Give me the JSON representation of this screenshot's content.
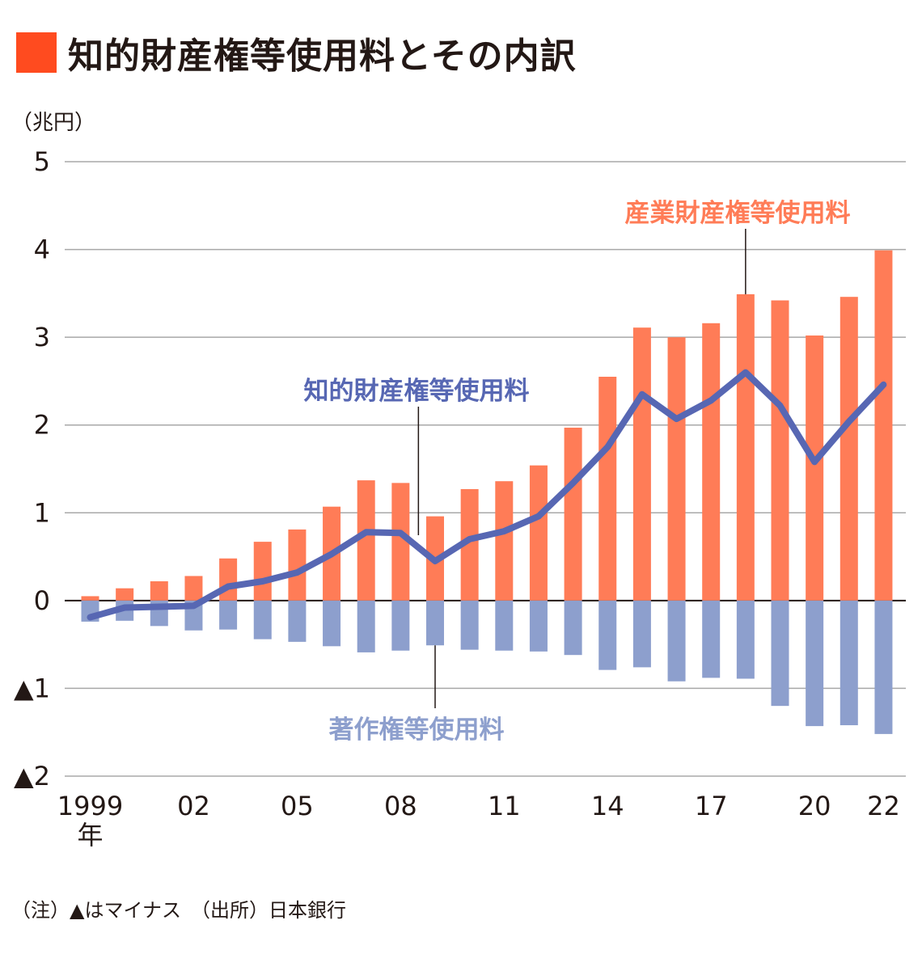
{
  "title": "知的財産権等使用料とその内訳",
  "unit_label": "（兆円）",
  "note": "（注）▲はマイナス　（出所）日本銀行",
  "colors": {
    "accent": "#ff4b1f",
    "industrial": "#ff7c57",
    "copyright": "#8d9fcd",
    "total": "#5767b3",
    "grid": "#a8a8a8"
  },
  "chart_data": {
    "type": "bar",
    "title": "知的財産権等使用料とその内訳",
    "ylabel": "（兆円）",
    "ylim": [
      -2,
      5
    ],
    "grid": true,
    "x": [
      1999,
      2000,
      2001,
      2002,
      2003,
      2004,
      2005,
      2006,
      2007,
      2008,
      2009,
      2010,
      2011,
      2012,
      2013,
      2014,
      2015,
      2016,
      2017,
      2018,
      2019,
      2020,
      2021,
      2022
    ],
    "x_tick_labels": [
      {
        "year": 1999,
        "label": "1999",
        "sub": "年"
      },
      {
        "year": 2002,
        "label": "02"
      },
      {
        "year": 2005,
        "label": "05"
      },
      {
        "year": 2008,
        "label": "08"
      },
      {
        "year": 2011,
        "label": "11"
      },
      {
        "year": 2014,
        "label": "14"
      },
      {
        "year": 2017,
        "label": "17"
      },
      {
        "year": 2020,
        "label": "20"
      },
      {
        "year": 2022,
        "label": "22"
      }
    ],
    "y_ticks": [
      {
        "value": 5,
        "label": "5"
      },
      {
        "value": 4,
        "label": "4"
      },
      {
        "value": 3,
        "label": "3"
      },
      {
        "value": 2,
        "label": "2"
      },
      {
        "value": 1,
        "label": "1"
      },
      {
        "value": 0,
        "label": "0"
      },
      {
        "value": -1,
        "label": "▲1"
      },
      {
        "value": -2,
        "label": "▲2"
      }
    ],
    "series": [
      {
        "name": "産業財産権等使用料",
        "type": "bar",
        "values": [
          0.05,
          0.14,
          0.22,
          0.28,
          0.48,
          0.67,
          0.81,
          1.07,
          1.37,
          1.34,
          0.96,
          1.27,
          1.36,
          1.54,
          1.97,
          2.55,
          3.11,
          3.0,
          3.16,
          3.49,
          3.42,
          3.02,
          3.46,
          3.99
        ]
      },
      {
        "name": "著作権等使用料",
        "type": "bar",
        "values": [
          -0.24,
          -0.23,
          -0.29,
          -0.34,
          -0.33,
          -0.44,
          -0.47,
          -0.52,
          -0.59,
          -0.57,
          -0.51,
          -0.56,
          -0.57,
          -0.58,
          -0.62,
          -0.79,
          -0.76,
          -0.92,
          -0.88,
          -0.89,
          -1.2,
          -1.43,
          -1.42,
          -1.52
        ]
      },
      {
        "name": "知的財産権等使用料",
        "type": "line",
        "values": [
          -0.19,
          -0.08,
          -0.07,
          -0.06,
          0.16,
          0.22,
          0.32,
          0.53,
          0.78,
          0.77,
          0.45,
          0.7,
          0.79,
          0.96,
          1.34,
          1.75,
          2.35,
          2.07,
          2.28,
          2.6,
          2.22,
          1.58,
          2.04,
          2.46
        ]
      }
    ]
  }
}
